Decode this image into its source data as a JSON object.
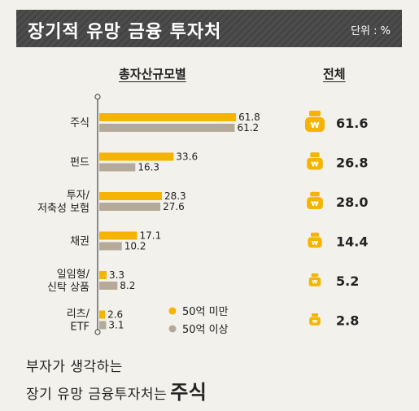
{
  "header": {
    "title": "장기적 유망 금융 투자처",
    "unit": "단위 : %"
  },
  "columns": {
    "left_title": "총자산규모별",
    "right_title": "전체"
  },
  "footer": {
    "line1": "부자가 생각하는",
    "line2_prefix": "장기 유망 금융투자처는",
    "line2_emphasis": "주식"
  },
  "colors": {
    "series_under50": "#f4b400",
    "series_over50": "#b5aa9a",
    "header_bg": "#484848",
    "icon_gold": "#f4b400",
    "background": "#f3f1ec"
  },
  "chart_data": {
    "type": "bar",
    "orientation": "horizontal",
    "categories": [
      [
        "주식"
      ],
      [
        "펀드"
      ],
      [
        "투자/",
        "저축성 보험"
      ],
      [
        "채권"
      ],
      [
        "일임형/",
        "신탁 상품"
      ],
      [
        "리츠/",
        "ETF"
      ]
    ],
    "series": [
      {
        "name": "50억 미만",
        "values": [
          61.8,
          33.6,
          28.3,
          17.1,
          3.3,
          2.6
        ]
      },
      {
        "name": "50억 이상",
        "values": [
          61.2,
          16.3,
          27.6,
          10.2,
          8.2,
          3.1
        ]
      }
    ],
    "totals": [
      61.6,
      26.8,
      28.0,
      14.4,
      5.2,
      2.8
    ],
    "total_labels": [
      "61.6",
      "26.8",
      "28.0",
      "14.4",
      "5.2",
      "2.8"
    ],
    "value_labels": [
      [
        "61.8",
        "33.6",
        "28.3",
        "17.1",
        "3.3",
        "2.6"
      ],
      [
        "61.2",
        "16.3",
        "27.6",
        "10.2",
        "8.2",
        "3.1"
      ]
    ],
    "legend": [
      "50억 미만",
      "50억 이상"
    ],
    "legend_position": "bottom-right of plot",
    "icon": "money-bag-won-icon",
    "xlim": [
      0,
      70
    ],
    "grid": false
  }
}
